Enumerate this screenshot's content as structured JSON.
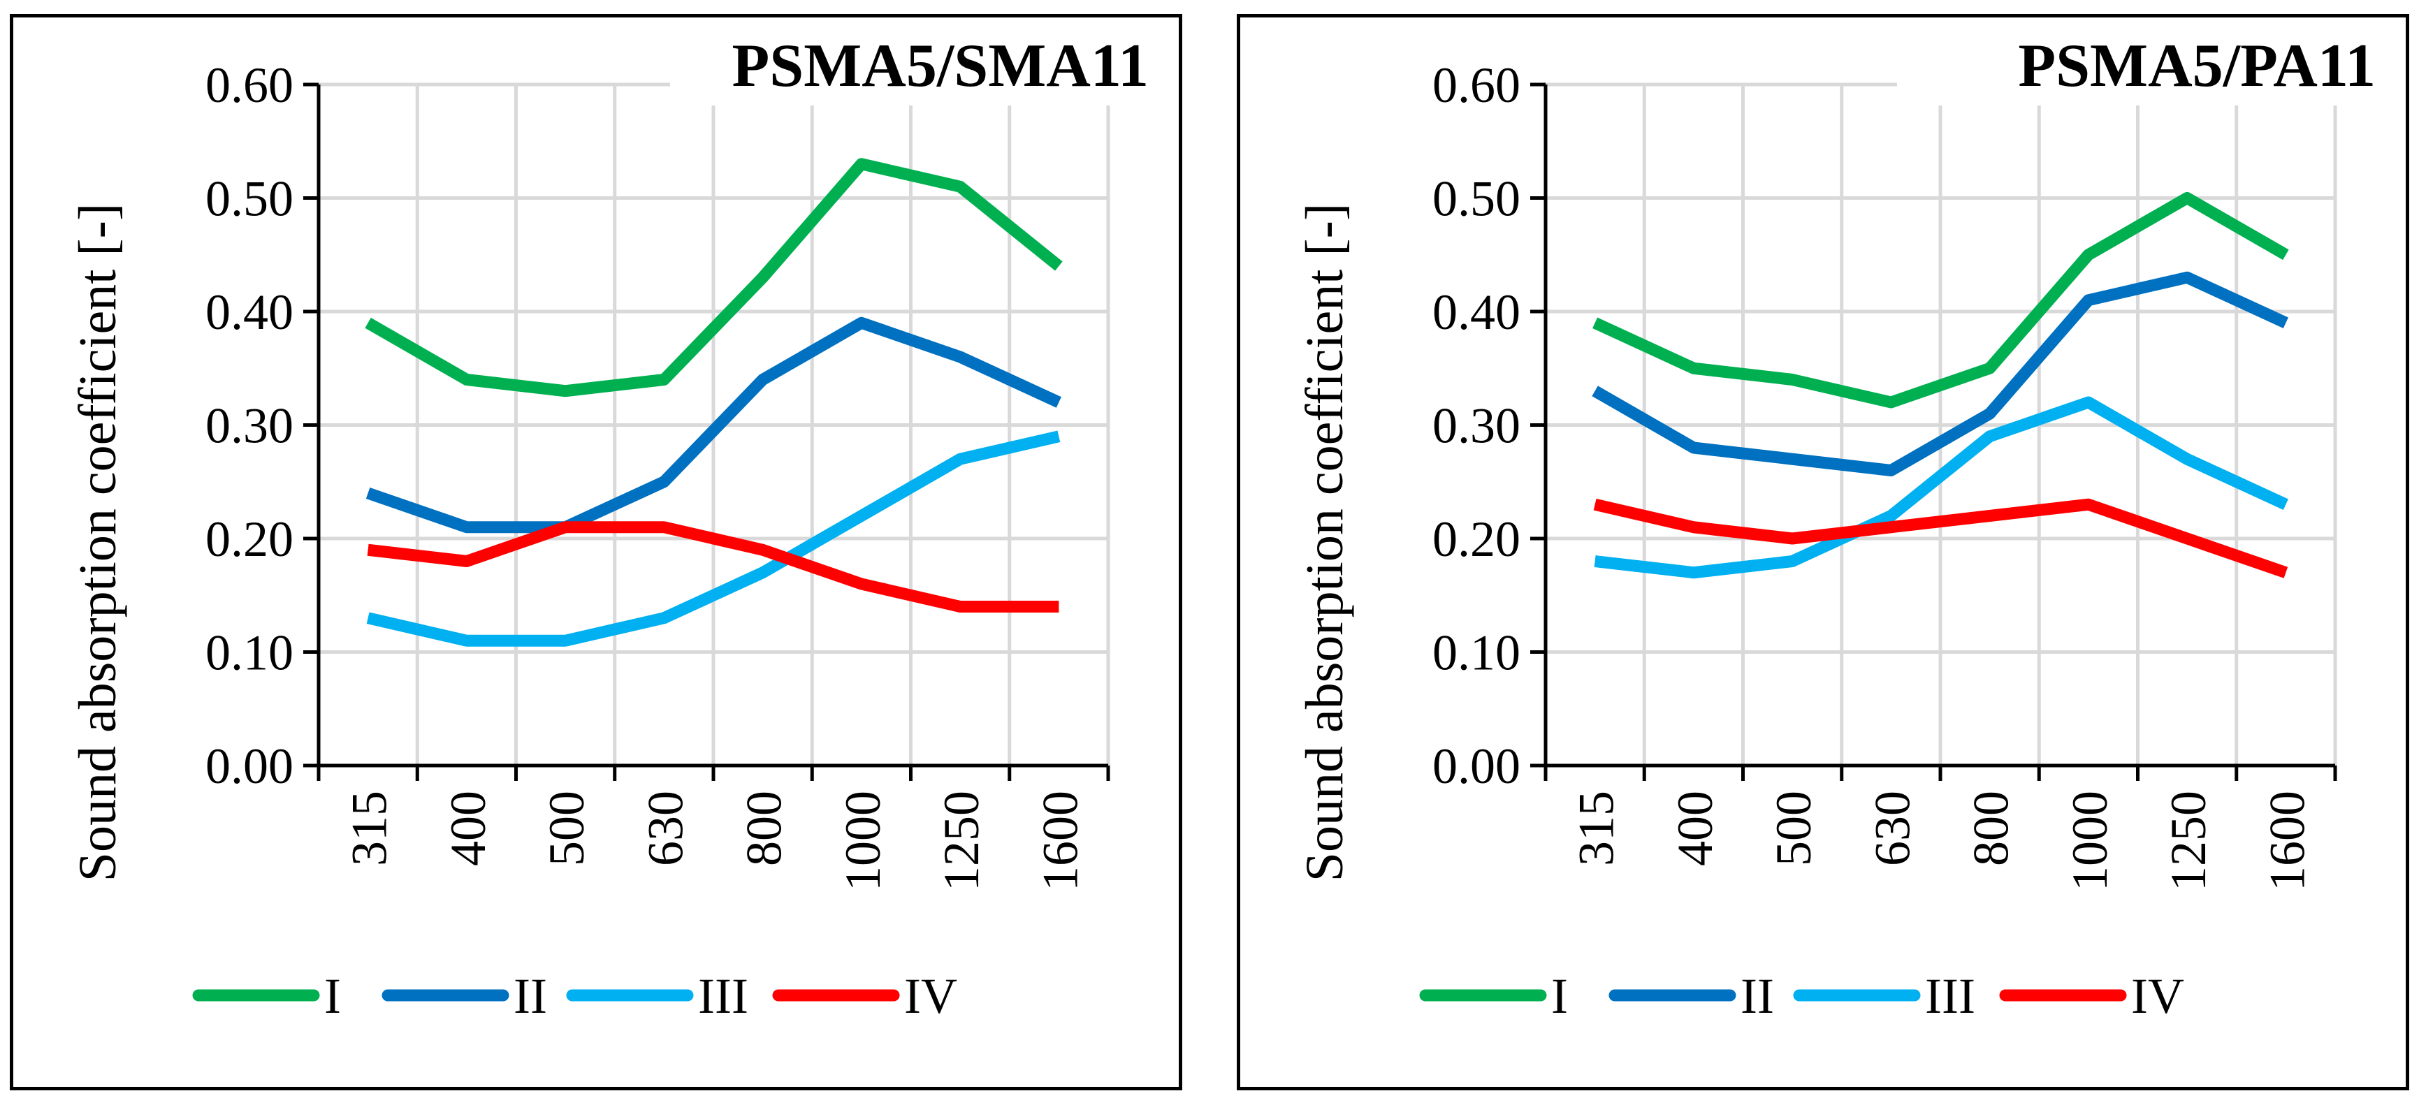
{
  "chart_data": [
    {
      "type": "line",
      "title": "PSMA5/SMA11",
      "xlabel": "",
      "ylabel": "Sound absorption coefficient [-]",
      "categories": [
        "315",
        "400",
        "500",
        "630",
        "800",
        "1000",
        "1250",
        "1600"
      ],
      "ylim": [
        0,
        0.6
      ],
      "yticks": [
        "0.00",
        "0.10",
        "0.20",
        "0.30",
        "0.40",
        "0.50",
        "0.60"
      ],
      "grid": true,
      "legend": "bottom",
      "series": [
        {
          "name": "I",
          "color": "#00b050",
          "values": [
            0.39,
            0.34,
            0.33,
            0.34,
            0.43,
            0.53,
            0.51,
            0.44
          ]
        },
        {
          "name": "II",
          "color": "#0070c0",
          "values": [
            0.24,
            0.21,
            0.21,
            0.25,
            0.34,
            0.39,
            0.36,
            0.32
          ]
        },
        {
          "name": "III",
          "color": "#00b0f0",
          "values": [
            0.13,
            0.11,
            0.11,
            0.13,
            0.17,
            0.22,
            0.27,
            0.29
          ]
        },
        {
          "name": "IV",
          "color": "#ff0000",
          "values": [
            0.19,
            0.18,
            0.21,
            0.21,
            0.19,
            0.16,
            0.14,
            0.14
          ]
        }
      ]
    },
    {
      "type": "line",
      "title": "PSMA5/PA11",
      "xlabel": "",
      "ylabel": "Sound absorption coefficient [-]",
      "categories": [
        "315",
        "400",
        "500",
        "630",
        "800",
        "1000",
        "1250",
        "1600"
      ],
      "ylim": [
        0,
        0.6
      ],
      "yticks": [
        "0.00",
        "0.10",
        "0.20",
        "0.30",
        "0.40",
        "0.50",
        "0.60"
      ],
      "grid": true,
      "legend": "bottom",
      "series": [
        {
          "name": "I",
          "color": "#00b050",
          "values": [
            0.39,
            0.35,
            0.34,
            0.32,
            0.35,
            0.45,
            0.5,
            0.45
          ]
        },
        {
          "name": "II",
          "color": "#0070c0",
          "values": [
            0.33,
            0.28,
            0.27,
            0.26,
            0.31,
            0.41,
            0.43,
            0.39
          ]
        },
        {
          "name": "III",
          "color": "#00b0f0",
          "values": [
            0.18,
            0.17,
            0.18,
            0.22,
            0.29,
            0.32,
            0.27,
            0.23
          ]
        },
        {
          "name": "IV",
          "color": "#ff0000",
          "values": [
            0.23,
            0.21,
            0.2,
            0.21,
            0.22,
            0.23,
            0.2,
            0.17
          ]
        }
      ]
    }
  ]
}
